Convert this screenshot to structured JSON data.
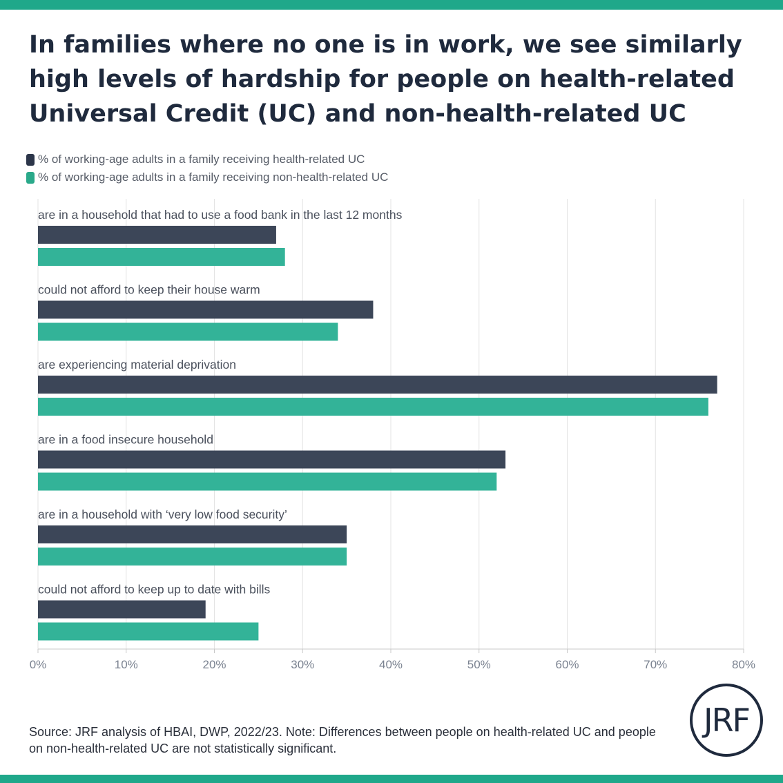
{
  "title": "In families where no one is in work, we see similarly high levels of hardship for people on health-related Universal Credit (UC) and non-health-related UC",
  "colors": {
    "band": "#1fa88a",
    "series_health": "#3c4658",
    "series_non_health": "#33b398"
  },
  "legend": [
    {
      "label": "% of working-age adults in a family receiving health-related UC",
      "color": "#2c364a"
    },
    {
      "label": "% of working-age adults in a family receiving non-health-related UC",
      "color": "#2aa98a"
    }
  ],
  "chart_data": {
    "type": "bar",
    "orientation": "horizontal",
    "categories": [
      "are in a household that had to use a food bank in the last 12 months",
      "could not afford to keep their house warm",
      "are experiencing material deprivation",
      "are in a food insecure household",
      "are in a household with ‘very low food security’",
      "could not afford to keep up to date with bills"
    ],
    "series": [
      {
        "name": "% of working-age adults in a family receiving health-related UC",
        "values": [
          27,
          38,
          77,
          53,
          35,
          19
        ]
      },
      {
        "name": "% of working-age adults in a family receiving non-health-related UC",
        "values": [
          28,
          34,
          76,
          52,
          35,
          25
        ]
      }
    ],
    "xlim": [
      0,
      80
    ],
    "xticks": [
      "0%",
      "10%",
      "20%",
      "30%",
      "40%",
      "50%",
      "60%",
      "70%",
      "80%"
    ],
    "grid": true,
    "legend_position": "top-left"
  },
  "source": "Source: JRF analysis of HBAI, DWP, 2022/23. Note: Differences between people on health-related UC and people on non-health-related UC are not statistically significant.",
  "logo_text": "JRF"
}
